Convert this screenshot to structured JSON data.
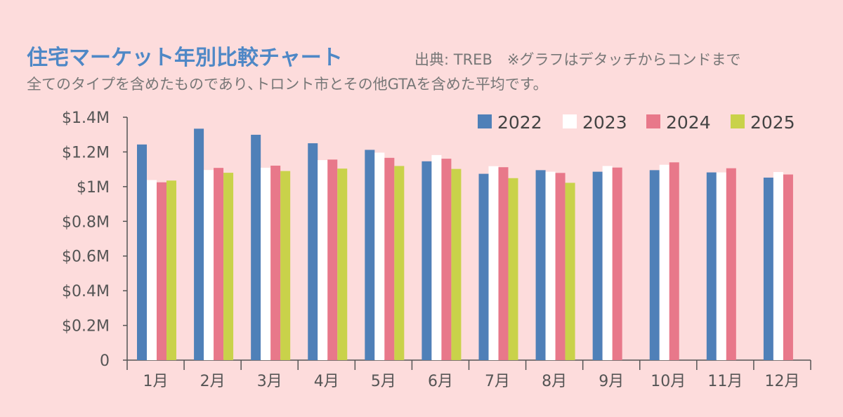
{
  "header": {
    "title": "住宅マーケット年別比較チャート",
    "source": "出典: TREB　※グラフはデタッチからコンドまで",
    "subtitle": "全てのタイプを含めたものであり､トロント市とその他GTAを含めた平均です。"
  },
  "chart_data": {
    "type": "bar",
    "categories": [
      "1月",
      "2月",
      "3月",
      "4月",
      "5月",
      "6月",
      "7月",
      "8月",
      "9月",
      "10月",
      "11月",
      "12月"
    ],
    "series": [
      {
        "name": "2022",
        "color": "#4f80b8",
        "values": [
          1.243,
          1.334,
          1.299,
          1.25,
          1.212,
          1.146,
          1.074,
          1.095,
          1.086,
          1.095,
          1.082,
          1.052
        ]
      },
      {
        "name": "2023",
        "color": "#ffffff",
        "values": [
          1.038,
          1.096,
          1.109,
          1.153,
          1.196,
          1.182,
          1.118,
          1.086,
          1.119,
          1.126,
          1.082,
          1.084
        ]
      },
      {
        "name": "2024",
        "color": "#e8788a",
        "values": [
          1.025,
          1.108,
          1.121,
          1.156,
          1.166,
          1.161,
          1.112,
          1.079,
          1.11,
          1.14,
          1.106,
          1.07
        ]
      },
      {
        "name": "2025",
        "color": "#c9d24a",
        "values": [
          1.035,
          1.08,
          1.09,
          1.104,
          1.119,
          1.102,
          1.049,
          1.022,
          null,
          null,
          null,
          null
        ]
      }
    ],
    "ylim": [
      0,
      1.4
    ],
    "yticks": [
      {
        "value": 0,
        "label": "0"
      },
      {
        "value": 0.2,
        "label": "$0.2M"
      },
      {
        "value": 0.4,
        "label": "$0.4M"
      },
      {
        "value": 0.6,
        "label": "$0.6M"
      },
      {
        "value": 0.8,
        "label": "$0.8M"
      },
      {
        "value": 1.0,
        "label": "$1M"
      },
      {
        "value": 1.2,
        "label": "$1.2M"
      },
      {
        "value": 1.4,
        "label": "$1.4M"
      }
    ],
    "legend_position": "top-right",
    "grid": false,
    "xlabel": "",
    "ylabel": ""
  }
}
